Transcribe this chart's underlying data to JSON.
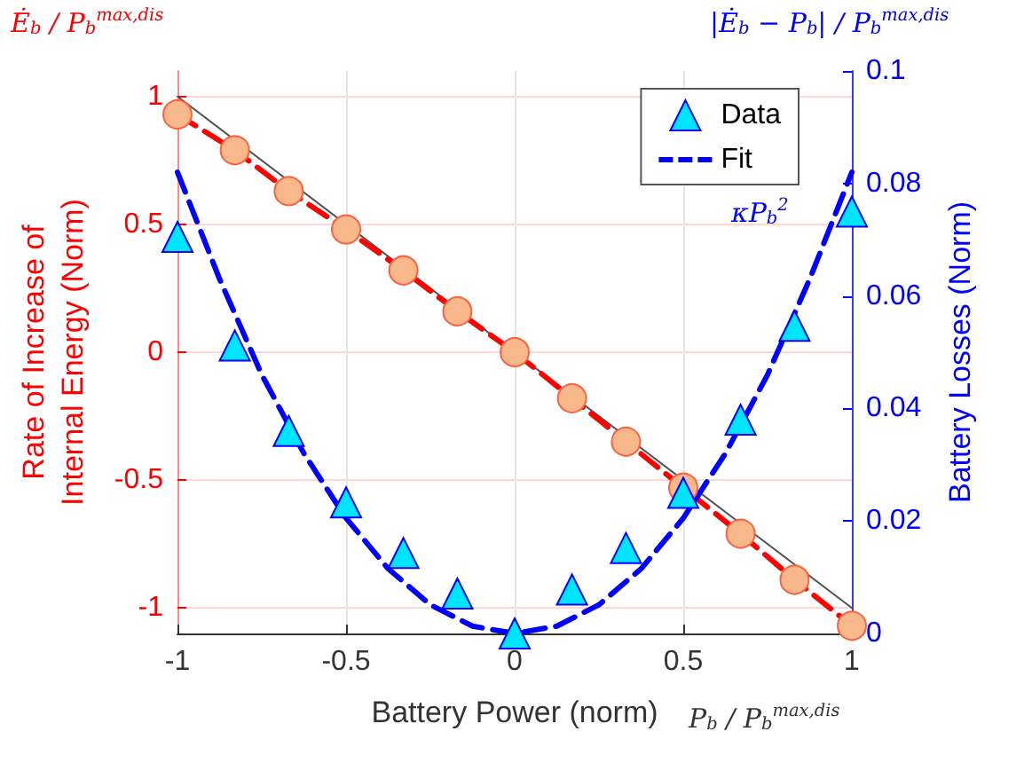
{
  "chart_data": {
    "type": "scatter",
    "xlabel": "Battery Power (norm)",
    "ylabel": "Rate of Increase of\nInternal Energy (Norm)",
    "y2label": "Battery Losses (Norm)",
    "annotations": [
      "Ė$_{b}$ / P$_{b}$$^{max,dis}$",
      "|Ė$_{b}$ − P$_{b}$| / P$_{b}$$^{max,dis}$",
      "κP$_{b}$$^{2}$",
      "P$_{b}$ / P$_{b}$$^{max,dis}$"
    ],
    "xlim": [
      -1,
      1
    ],
    "xticks": [
      -1,
      -0.5,
      0,
      0.5,
      1
    ],
    "ylim": [
      -1.1,
      1.1
    ],
    "yticks": [
      -1,
      -0.5,
      0,
      0.5,
      1
    ],
    "y2lim": [
      0,
      0.1
    ],
    "y2ticks": [
      0,
      0.02,
      0.04,
      0.06,
      0.08,
      0.1
    ],
    "grid": true,
    "legend": "top right",
    "series": [
      {
        "type": "line",
        "color": "#505050",
        "line_style": "solid",
        "marker": "none",
        "x": [
          -1,
          1
        ],
        "values": [
          1,
          -1
        ]
      },
      {
        "type": "line",
        "color": "#ff0000",
        "line_style": "dashed",
        "marker": "none",
        "x": [
          -1,
          -0.83,
          -0.67,
          -0.5,
          -0.33,
          -0.17,
          0,
          0.17,
          0.33,
          0.5,
          0.67,
          0.83,
          1
        ],
        "values": [
          0.93,
          0.79,
          0.63,
          0.48,
          0.32,
          0.16,
          0,
          -0.18,
          -0.35,
          -0.53,
          -0.71,
          -0.89,
          -1.07
        ]
      },
      {
        "color": "#f8b88b",
        "marker": "circle",
        "x": [
          -1,
          -0.83,
          -0.67,
          -0.5,
          -0.33,
          -0.17,
          0,
          0.17,
          0.33,
          0.5,
          0.67,
          0.83,
          1
        ],
        "values": [
          0.93,
          0.79,
          0.63,
          0.48,
          0.32,
          0.16,
          0,
          -0.18,
          -0.35,
          -0.53,
          -0.71,
          -0.89,
          -1.07
        ]
      },
      {
        "name": "Data",
        "axis": "y2",
        "color": "#00e5ff",
        "marker": "triangle",
        "x": [
          -1,
          -0.83,
          -0.67,
          -0.5,
          -0.33,
          -0.17,
          0,
          0.17,
          0.33,
          0.5,
          0.67,
          0.83,
          1
        ],
        "values": [
          0.0705,
          0.0512,
          0.036,
          0.0233,
          0.0143,
          0.0071,
          0,
          0.0078,
          0.0152,
          0.025,
          0.038,
          0.0547,
          0.075
        ]
      },
      {
        "type": "line",
        "name": "Fit",
        "axis": "y2",
        "color": "#0000ff",
        "line_style": "dashed",
        "marker": "none",
        "x": [
          -1,
          -0.875,
          -0.75,
          -0.625,
          -0.5,
          -0.375,
          -0.25,
          -0.125,
          0,
          0.125,
          0.25,
          0.375,
          0.5,
          0.625,
          0.75,
          0.875,
          1
        ],
        "values": [
          0.082,
          0.063,
          0.046,
          0.032,
          0.0205,
          0.0115,
          0.0051,
          0.0013,
          0,
          0.0013,
          0.0051,
          0.0115,
          0.0205,
          0.032,
          0.046,
          0.063,
          0.082
        ]
      }
    ]
  }
}
